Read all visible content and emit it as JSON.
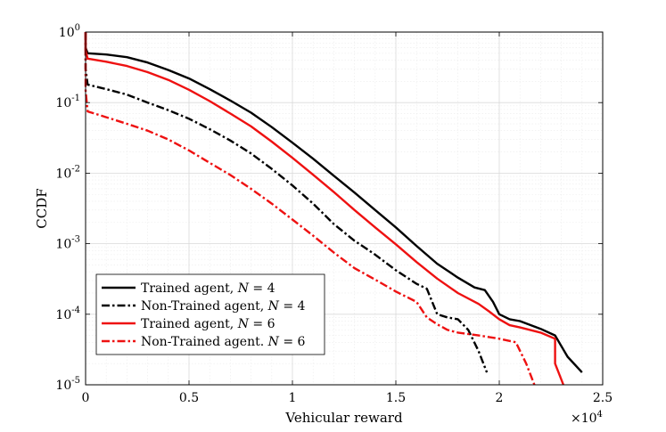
{
  "chart_data": {
    "type": "line",
    "title": "",
    "xlabel": "Vehicular reward",
    "ylabel": "CCDF",
    "x_multiplier_label": "×10",
    "x_multiplier_exp": "4",
    "xlim": [
      0,
      25000
    ],
    "ylim": [
      1e-05,
      1
    ],
    "y_scale": "log",
    "grid": true,
    "legend_position": "bottom-left",
    "x_ticks": [
      0,
      5000,
      10000,
      15000,
      20000,
      25000
    ],
    "x_tick_labels": [
      "0",
      "0.5",
      "1",
      "1.5",
      "2",
      "2.5"
    ],
    "y_ticks": [
      1e-05,
      0.0001,
      0.001,
      0.01,
      0.1,
      1
    ],
    "y_tick_labels": [
      {
        "base": "10",
        "exp": "-5"
      },
      {
        "base": "10",
        "exp": "-4"
      },
      {
        "base": "10",
        "exp": "-3"
      },
      {
        "base": "10",
        "exp": "-2"
      },
      {
        "base": "10",
        "exp": "-1"
      },
      {
        "base": "10",
        "exp": "0"
      }
    ],
    "series": [
      {
        "name": "Trained agent, N = 4",
        "label_prefix": "Trained agent, ",
        "label_var": "N",
        "label_suffix": " = 4",
        "color": "#000000",
        "dash": "solid",
        "x": [
          0,
          0,
          100,
          1000,
          2000,
          3000,
          4000,
          5000,
          6000,
          7000,
          8000,
          9000,
          10000,
          11000,
          12000,
          13000,
          14000,
          15000,
          16000,
          17000,
          18000,
          18800,
          19300,
          19700,
          20000,
          20500,
          21000,
          22000,
          22700,
          23300,
          24000
        ],
        "y": [
          1,
          0.6,
          0.5,
          0.48,
          0.44,
          0.37,
          0.29,
          0.22,
          0.155,
          0.107,
          0.072,
          0.045,
          0.027,
          0.016,
          0.0092,
          0.0053,
          0.003,
          0.0017,
          0.00093,
          0.00052,
          0.00033,
          0.00024,
          0.00022,
          0.00015,
          0.0001,
          8.5e-05,
          8e-05,
          6.2e-05,
          5e-05,
          2.5e-05,
          1.5e-05
        ]
      },
      {
        "name": "Non-Trained agent, N = 4",
        "label_prefix": "Non-Trained agent, ",
        "label_var": "N",
        "label_suffix": " = 4",
        "color": "#000000",
        "dash": "dashdot",
        "x": [
          0,
          0,
          100,
          1000,
          2000,
          3000,
          4000,
          5000,
          6000,
          7000,
          8000,
          9000,
          10000,
          11000,
          12000,
          13000,
          13500,
          14000,
          15000,
          16000,
          16500,
          17000,
          17500,
          18000,
          18500,
          19000,
          19400
        ],
        "y": [
          1,
          0.3,
          0.18,
          0.155,
          0.13,
          0.1,
          0.078,
          0.059,
          0.042,
          0.029,
          0.019,
          0.0115,
          0.0067,
          0.0037,
          0.0019,
          0.0011,
          0.00088,
          0.0007,
          0.00042,
          0.00027,
          0.00023,
          0.0001,
          9e-05,
          8.5e-05,
          6e-05,
          3e-05,
          1.5e-05
        ]
      },
      {
        "name": "Trained agent, N = 6",
        "label_prefix": "Trained agent, ",
        "label_var": "N",
        "label_suffix": " = 6",
        "color": "#ee1111",
        "dash": "solid",
        "x": [
          0,
          0,
          100,
          1000,
          2000,
          3000,
          4000,
          5000,
          6000,
          7000,
          8000,
          9000,
          10000,
          11000,
          12000,
          13000,
          14000,
          15000,
          16000,
          17000,
          18000,
          19000,
          19500,
          20000,
          20500,
          21000,
          22000,
          22700,
          22700,
          23100
        ],
        "y": [
          1,
          0.55,
          0.42,
          0.38,
          0.33,
          0.27,
          0.21,
          0.152,
          0.105,
          0.07,
          0.046,
          0.028,
          0.0165,
          0.0095,
          0.0054,
          0.003,
          0.0017,
          0.00098,
          0.00055,
          0.00032,
          0.0002,
          0.00014,
          0.00011,
          8.5e-05,
          7e-05,
          6.5e-05,
          5.5e-05,
          4.5e-05,
          2e-05,
          1e-05
        ]
      },
      {
        "name": "Non-Trained agent. N = 6",
        "label_prefix": "Non-Trained agent. ",
        "label_var": "N",
        "label_suffix": " = 6",
        "color": "#ee1111",
        "dash": "dashdot",
        "x": [
          0,
          0,
          100,
          1000,
          2000,
          3000,
          4000,
          5000,
          6000,
          7000,
          8000,
          9000,
          10000,
          11000,
          12000,
          13000,
          14000,
          15000,
          16000,
          16500,
          17000,
          17500,
          18000,
          19000,
          20000,
          20800,
          21300,
          21700
        ],
        "y": [
          1,
          0.15,
          0.075,
          0.062,
          0.05,
          0.04,
          0.03,
          0.021,
          0.014,
          0.0094,
          0.006,
          0.0037,
          0.0022,
          0.0013,
          0.00075,
          0.00045,
          0.00031,
          0.00021,
          0.00015,
          9e-05,
          7.2e-05,
          6e-05,
          5.5e-05,
          5e-05,
          4.5e-05,
          4e-05,
          2e-05,
          1e-05
        ]
      }
    ]
  }
}
